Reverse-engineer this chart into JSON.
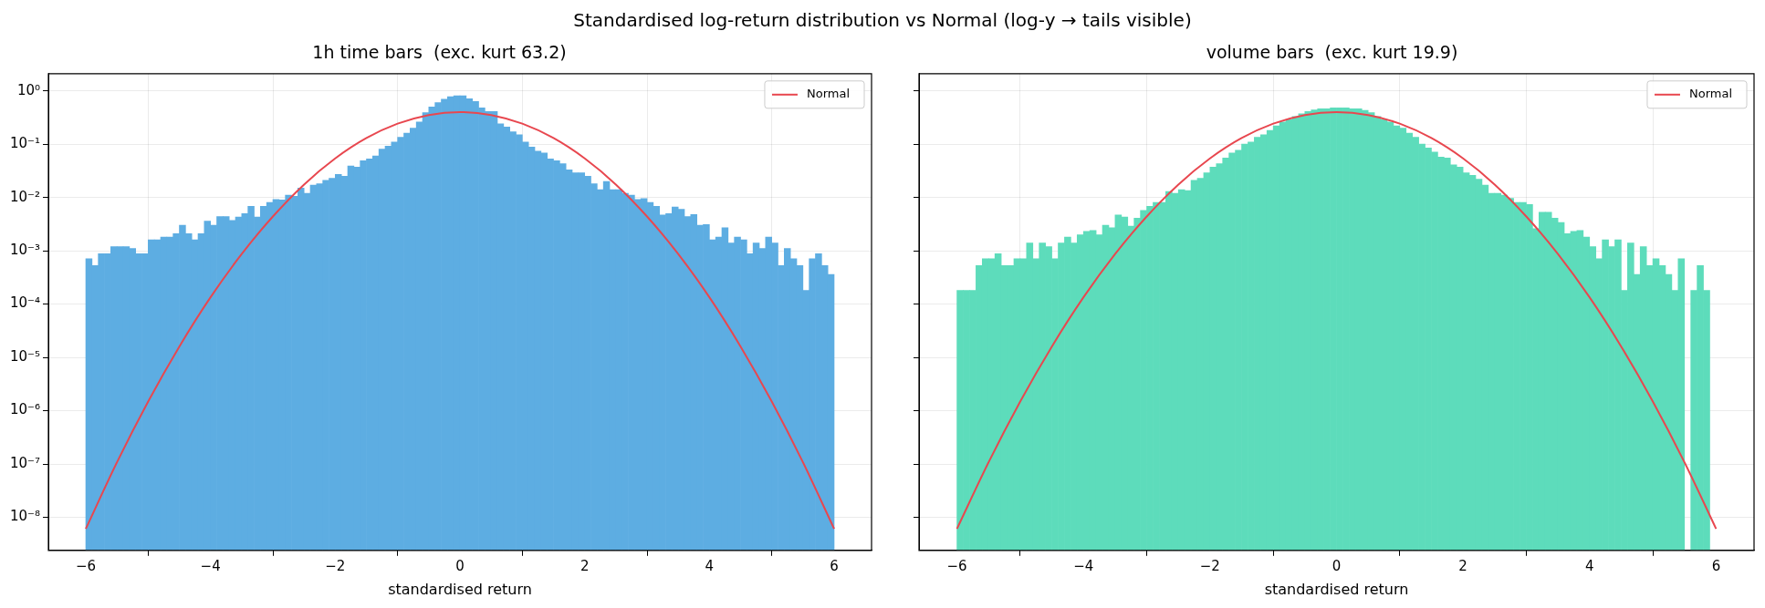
{
  "chart_data": [
    {
      "type": "histogram",
      "title": "1h time bars  (exc. kurt 63.2)",
      "xlabel": "standardised return",
      "annotations": [
        "Standardised log-return distribution vs Normal (log-y → tails visible)"
      ],
      "bins": [
        -6.0,
        -5.9,
        -5.8,
        -5.7,
        -5.6,
        -5.5,
        -5.4,
        -5.3,
        -5.2,
        -5.1,
        -5.0,
        -4.9,
        -4.8,
        -4.7,
        -4.6,
        -4.5,
        -4.4,
        -4.3,
        -4.2,
        -4.1,
        -4.0,
        -3.9,
        -3.8,
        -3.7,
        -3.6,
        -3.5,
        -3.4,
        -3.3,
        -3.2,
        -3.1,
        -3.0,
        -2.9,
        -2.8,
        -2.7,
        -2.6,
        -2.5,
        -2.4,
        -2.3,
        -2.2,
        -2.1,
        -2.0,
        -1.9,
        -1.8,
        -1.7,
        -1.6,
        -1.5,
        -1.4,
        -1.3,
        -1.2,
        -1.1,
        -1.0,
        -0.9,
        -0.8,
        -0.7,
        -0.6,
        -0.5,
        -0.4,
        -0.3,
        -0.2,
        -0.1,
        0.0,
        0.1,
        0.2,
        0.3,
        0.4,
        0.5,
        0.6,
        0.7,
        0.8,
        0.9,
        1.0,
        1.1,
        1.2,
        1.3,
        1.4,
        1.5,
        1.6,
        1.7,
        1.8,
        1.9,
        2.0,
        2.1,
        2.2,
        2.3,
        2.4,
        2.5,
        2.6,
        2.7,
        2.8,
        2.9,
        3.0,
        3.1,
        3.2,
        3.3,
        3.4,
        3.5,
        3.6,
        3.7,
        3.8,
        3.9,
        4.0,
        4.1,
        4.2,
        4.3,
        4.4,
        4.5,
        4.6,
        4.7,
        4.8,
        4.9,
        5.0,
        5.1,
        5.2,
        5.3,
        5.4,
        5.5,
        5.6,
        5.7,
        5.8,
        5.9,
        6.0
      ],
      "series": [
        {
          "type": "histogram",
          "color": "#5dade2",
          "values": [
            0.00071,
            0.00053,
            0.00088,
            0.00088,
            0.0012,
            0.0012,
            0.0012,
            0.0011,
            0.00088,
            0.00088,
            0.0016,
            0.0016,
            0.0018,
            0.0018,
            0.0021,
            0.003,
            0.0021,
            0.0016,
            0.0021,
            0.0036,
            0.003,
            0.0044,
            0.0044,
            0.0037,
            0.0043,
            0.005,
            0.0068,
            0.0043,
            0.0068,
            0.0081,
            0.0092,
            0.009,
            0.011,
            0.0105,
            0.015,
            0.012,
            0.017,
            0.018,
            0.021,
            0.023,
            0.027,
            0.025,
            0.039,
            0.037,
            0.049,
            0.053,
            0.06,
            0.081,
            0.092,
            0.11,
            0.135,
            0.16,
            0.2,
            0.26,
            0.39,
            0.5,
            0.6,
            0.7,
            0.78,
            0.81,
            0.81,
            0.71,
            0.63,
            0.48,
            0.41,
            0.41,
            0.24,
            0.21,
            0.17,
            0.15,
            0.11,
            0.088,
            0.074,
            0.068,
            0.053,
            0.049,
            0.043,
            0.033,
            0.029,
            0.029,
            0.025,
            0.018,
            0.014,
            0.02,
            0.014,
            0.014,
            0.012,
            0.011,
            0.0092,
            0.0095,
            0.0081,
            0.0068,
            0.0047,
            0.005,
            0.0066,
            0.006,
            0.0044,
            0.0048,
            0.003,
            0.0031,
            0.0016,
            0.0018,
            0.0027,
            0.0014,
            0.0018,
            0.0016,
            0.00088,
            0.0014,
            0.0011,
            0.0018,
            0.0014,
            0.00053,
            0.0011,
            0.00071,
            0.00053,
            0.00018,
            0.00071,
            0.00088,
            0.00053,
            0.00036
          ]
        },
        {
          "type": "line",
          "name": "Normal",
          "color": "#e8474f",
          "x": [
            -6,
            -5.5,
            -5,
            -4.5,
            -4,
            -3.5,
            -3,
            -2.5,
            -2,
            -1.5,
            -1,
            -0.5,
            0,
            0.5,
            1,
            1.5,
            2,
            2.5,
            3,
            3.5,
            4,
            4.5,
            5,
            5.5,
            6
          ],
          "values": [
            6.1e-09,
            1.08e-07,
            1.49e-06,
            1.6e-05,
            0.000134,
            0.00087,
            0.0044,
            0.0175,
            0.054,
            0.13,
            0.242,
            0.352,
            0.399,
            0.352,
            0.242,
            0.13,
            0.054,
            0.0175,
            0.0044,
            0.00087,
            0.000134,
            1.6e-05,
            1.49e-06,
            1.08e-07,
            6.1e-09
          ]
        }
      ],
      "log": "y",
      "grid": true,
      "legend": "top right",
      "xlim": [
        -6.6,
        6.6
      ],
      "xticks": [
        {
          "value": -6,
          "label": "−6"
        },
        {
          "value": -4,
          "label": "−4"
        },
        {
          "value": -2,
          "label": "−2"
        },
        0,
        2,
        4,
        6
      ],
      "ylim": [
        2.4e-09,
        2.1
      ],
      "yticks": [
        {
          "value": 1,
          "label": "10⁰"
        },
        {
          "value": 0.1,
          "label": "10⁻¹"
        },
        {
          "value": 0.01,
          "label": "10⁻²"
        },
        {
          "value": 0.001,
          "label": "10⁻³"
        },
        {
          "value": 0.0001,
          "label": "10⁻⁴"
        },
        {
          "value": 1e-05,
          "label": "10⁻⁵"
        },
        {
          "value": 1e-06,
          "label": "10⁻⁶"
        },
        {
          "value": 1e-07,
          "label": "10⁻⁷"
        },
        {
          "value": 1e-08,
          "label": "10⁻⁸"
        }
      ]
    },
    {
      "type": "histogram",
      "title": "volume bars  (exc. kurt 19.9)",
      "xlabel": "standardised return",
      "bins": [
        -6.0,
        -5.9,
        -5.8,
        -5.7,
        -5.6,
        -5.5,
        -5.4,
        -5.3,
        -5.2,
        -5.1,
        -5.0,
        -4.9,
        -4.8,
        -4.7,
        -4.6,
        -4.5,
        -4.4,
        -4.3,
        -4.2,
        -4.1,
        -4.0,
        -3.9,
        -3.8,
        -3.7,
        -3.6,
        -3.5,
        -3.4,
        -3.3,
        -3.2,
        -3.1,
        -3.0,
        -2.9,
        -2.8,
        -2.7,
        -2.6,
        -2.5,
        -2.4,
        -2.3,
        -2.2,
        -2.1,
        -2.0,
        -1.9,
        -1.8,
        -1.7,
        -1.6,
        -1.5,
        -1.4,
        -1.3,
        -1.2,
        -1.1,
        -1.0,
        -0.9,
        -0.8,
        -0.7,
        -0.6,
        -0.5,
        -0.4,
        -0.3,
        -0.2,
        -0.1,
        0.0,
        0.1,
        0.2,
        0.3,
        0.4,
        0.5,
        0.6,
        0.7,
        0.8,
        0.9,
        1.0,
        1.1,
        1.2,
        1.3,
        1.4,
        1.5,
        1.6,
        1.7,
        1.8,
        1.9,
        2.0,
        2.1,
        2.2,
        2.3,
        2.4,
        2.5,
        2.6,
        2.7,
        2.8,
        2.9,
        3.0,
        3.1,
        3.2,
        3.3,
        3.4,
        3.5,
        3.6,
        3.7,
        3.8,
        3.9,
        4.0,
        4.1,
        4.2,
        4.3,
        4.4,
        4.5,
        4.6,
        4.7,
        4.8,
        4.9,
        5.0,
        5.1,
        5.2,
        5.3,
        5.4,
        5.5,
        5.6,
        5.7,
        5.8,
        5.9,
        6.0
      ],
      "series": [
        {
          "type": "histogram",
          "color": "#5ddcbb",
          "values": [
            0.00018,
            0.00018,
            0.00018,
            0.00053,
            0.00071,
            0.00071,
            0.00088,
            0.00053,
            0.00053,
            0.00071,
            0.00071,
            0.0014,
            0.00071,
            0.0014,
            0.0012,
            0.00071,
            0.0014,
            0.0018,
            0.0014,
            0.002,
            0.0023,
            0.0024,
            0.002,
            0.003,
            0.0027,
            0.0047,
            0.0043,
            0.0029,
            0.0041,
            0.0057,
            0.0068,
            0.0081,
            0.0081,
            0.013,
            0.012,
            0.014,
            0.0135,
            0.021,
            0.023,
            0.029,
            0.037,
            0.043,
            0.055,
            0.068,
            0.077,
            0.1,
            0.11,
            0.135,
            0.15,
            0.18,
            0.22,
            0.26,
            0.29,
            0.33,
            0.37,
            0.41,
            0.44,
            0.46,
            0.46,
            0.48,
            0.48,
            0.48,
            0.46,
            0.46,
            0.43,
            0.39,
            0.33,
            0.29,
            0.26,
            0.22,
            0.2,
            0.16,
            0.135,
            0.1,
            0.085,
            0.071,
            0.057,
            0.055,
            0.041,
            0.037,
            0.029,
            0.026,
            0.022,
            0.017,
            0.012,
            0.012,
            0.011,
            0.0096,
            0.0081,
            0.0081,
            0.0074,
            0.0026,
            0.0053,
            0.0053,
            0.0041,
            0.0034,
            0.0021,
            0.0023,
            0.0024,
            0.0018,
            0.0012,
            0.00071,
            0.0016,
            0.0012,
            0.0016,
            0.00018,
            0.0014,
            0.00036,
            0.0012,
            0.00053,
            0.00071,
            0.00053,
            0.00036,
            0.00018,
            0.00071,
            null,
            0.00018,
            0.00053,
            0.00018,
            null
          ]
        },
        {
          "type": "line",
          "name": "Normal",
          "color": "#e8474f",
          "x": [
            -6,
            -5.5,
            -5,
            -4.5,
            -4,
            -3.5,
            -3,
            -2.5,
            -2,
            -1.5,
            -1,
            -0.5,
            0,
            0.5,
            1,
            1.5,
            2,
            2.5,
            3,
            3.5,
            4,
            4.5,
            5,
            5.5,
            6
          ],
          "values": [
            6.1e-09,
            1.08e-07,
            1.49e-06,
            1.6e-05,
            0.000134,
            0.00087,
            0.0044,
            0.0175,
            0.054,
            0.13,
            0.242,
            0.352,
            0.399,
            0.352,
            0.242,
            0.13,
            0.054,
            0.0175,
            0.0044,
            0.00087,
            0.000134,
            1.6e-05,
            1.49e-06,
            1.08e-07,
            6.1e-09
          ]
        }
      ],
      "log": "y",
      "grid": true,
      "legend": "top right",
      "tick_labels": "x",
      "xlim": [
        -6.6,
        6.6
      ],
      "xticks": [
        {
          "value": -6,
          "label": "−6"
        },
        {
          "value": -4,
          "label": "−4"
        },
        {
          "value": -2,
          "label": "−2"
        },
        0,
        2,
        4,
        6
      ],
      "ylim": [
        2.4e-09,
        2.1
      ],
      "yticks": [
        {
          "value": 1,
          "label": null
        },
        {
          "value": 0.1,
          "label": null
        },
        {
          "value": 0.01,
          "label": null
        },
        {
          "value": 0.001,
          "label": null
        },
        {
          "value": 0.0001,
          "label": null
        },
        {
          "value": 1e-05,
          "label": null
        },
        {
          "value": 1e-06,
          "label": null
        },
        {
          "value": 1e-07,
          "label": null
        },
        {
          "value": 1e-08,
          "label": null
        }
      ]
    }
  ]
}
